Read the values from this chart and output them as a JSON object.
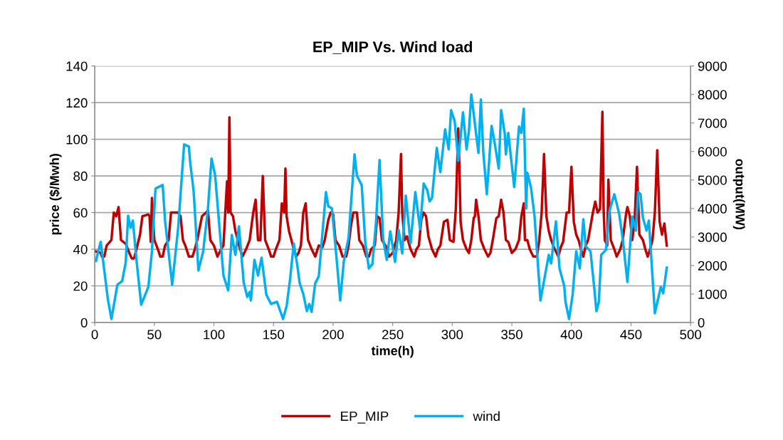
{
  "chart_data": {
    "type": "line",
    "title": "EP_MIP Vs. Wind load",
    "xlabel": "time(h)",
    "ylabel": "price ($/Mwh)",
    "y2label": "output(MW)",
    "xlim": [
      0,
      500
    ],
    "xticks": [
      0,
      50,
      100,
      150,
      200,
      250,
      300,
      350,
      400,
      450,
      500
    ],
    "ylim": [
      0,
      140
    ],
    "yticks": [
      0,
      20,
      40,
      60,
      80,
      100,
      120,
      140
    ],
    "y2lim": [
      0,
      9000
    ],
    "y2ticks": [
      0,
      1000,
      2000,
      3000,
      4000,
      5000,
      6000,
      7000,
      8000,
      9000
    ],
    "grid": "y",
    "legend": "bottom",
    "marker": "none",
    "line_style": "solid",
    "series": [
      {
        "name": "EP_MIP",
        "color": "#c00000",
        "axis": "y",
        "x": [
          0,
          5,
          6,
          8,
          10,
          14,
          16,
          18,
          20,
          22,
          26,
          29,
          31,
          33,
          35,
          38,
          40,
          45,
          46,
          47,
          48,
          50,
          53,
          55,
          57,
          59,
          62,
          64,
          70,
          72,
          74,
          76,
          79,
          82,
          84,
          86,
          90,
          95,
          97,
          100,
          103,
          106,
          108,
          111,
          112,
          113,
          114,
          116,
          118,
          120,
          122,
          124,
          127,
          130,
          133,
          135,
          137,
          139,
          141,
          143,
          146,
          148,
          150,
          152,
          155,
          157,
          159,
          160,
          161,
          163,
          165,
          167,
          169,
          171,
          173,
          175,
          177,
          179,
          182,
          185,
          188,
          191,
          193,
          196,
          198,
          200,
          202,
          205,
          208,
          211,
          213,
          215,
          217,
          220,
          222,
          225,
          228,
          230,
          232,
          235,
          237,
          239,
          241,
          244,
          247,
          250,
          253,
          255,
          257,
          258,
          260,
          262,
          265,
          268,
          270,
          272,
          274,
          276,
          278,
          280,
          283,
          286,
          288,
          290,
          293,
          296,
          298,
          301,
          303,
          305,
          306,
          307,
          309,
          312,
          314,
          316,
          318,
          319,
          320,
          322,
          324,
          327,
          330,
          332,
          334,
          337,
          339,
          341,
          343,
          345,
          347,
          350,
          353,
          356,
          358,
          360,
          361,
          363,
          365,
          368,
          371,
          373,
          375,
          377,
          379,
          381,
          383,
          386,
          389,
          391,
          393,
          396,
          398,
          400,
          402,
          404,
          406,
          408,
          410,
          412,
          414,
          418,
          420,
          422,
          424,
          426,
          427,
          428,
          430,
          431,
          433,
          436,
          438,
          441,
          443,
          446,
          447,
          449,
          451,
          453,
          455,
          457,
          460,
          462,
          464,
          466,
          468,
          470,
          472,
          474,
          476,
          478,
          480
        ],
        "values": [
          39,
          38,
          36,
          36,
          42,
          45,
          60,
          58,
          63,
          45,
          43,
          38,
          35,
          35,
          40,
          48,
          58,
          59,
          58,
          44,
          68,
          45,
          40,
          36,
          36,
          42,
          45,
          60,
          60,
          58,
          45,
          42,
          36,
          36,
          40,
          45,
          58,
          61,
          45,
          42,
          36,
          40,
          42,
          77,
          60,
          112,
          60,
          58,
          50,
          45,
          40,
          36,
          40,
          45,
          60,
          67,
          45,
          45,
          80,
          45,
          40,
          36,
          36,
          40,
          45,
          65,
          60,
          84,
          58,
          50,
          45,
          40,
          36,
          38,
          42,
          60,
          65,
          45,
          40,
          36,
          42,
          41,
          45,
          56,
          60,
          59,
          45,
          42,
          36,
          36,
          42,
          53,
          60,
          60,
          45,
          42,
          36,
          36,
          40,
          42,
          58,
          57,
          45,
          42,
          36,
          38,
          45,
          60,
          92,
          60,
          45,
          47,
          40,
          36,
          40,
          42,
          56,
          60,
          58,
          47,
          40,
          36,
          40,
          42,
          55,
          56,
          45,
          44,
          62,
          106,
          85,
          55,
          45,
          40,
          38,
          45,
          57,
          58,
          67,
          58,
          45,
          40,
          36,
          38,
          45,
          57,
          58,
          67,
          60,
          45,
          44,
          38,
          40,
          45,
          58,
          65,
          45,
          45,
          40,
          36,
          36,
          45,
          60,
          92,
          58,
          50,
          45,
          40,
          36,
          41,
          44,
          60,
          60,
          85,
          55,
          48,
          45,
          40,
          36,
          42,
          45,
          60,
          66,
          60,
          62,
          115,
          62,
          45,
          42,
          78,
          45,
          40,
          36,
          40,
          45,
          60,
          63,
          58,
          45,
          55,
          85,
          48,
          45,
          40,
          36,
          40,
          45,
          60,
          94,
          55,
          48,
          54,
          42
        ]
      },
      {
        "name": "wind",
        "color": "#00b0f0",
        "axis": "y2",
        "x": [
          1,
          5,
          11,
          14,
          19,
          23,
          26,
          28,
          30,
          32,
          35,
          39,
          45,
          48,
          51,
          57,
          59,
          65,
          70,
          75,
          79,
          80,
          83,
          87,
          91,
          95,
          98,
          101,
          108,
          112,
          115,
          118,
          121,
          125,
          128,
          130,
          131,
          134,
          137,
          140,
          144,
          148,
          153,
          158,
          161,
          164,
          167,
          170,
          172,
          175,
          178,
          180,
          182,
          185,
          188,
          194,
          196,
          199,
          202,
          206,
          209,
          213,
          218,
          220,
          224,
          227,
          230,
          233,
          236,
          239,
          242,
          245,
          248,
          252,
          255,
          258,
          261,
          265,
          269,
          273,
          276,
          279,
          281,
          283,
          287,
          290,
          294,
          297,
          299,
          302,
          305,
          309,
          312,
          314,
          316,
          320,
          322,
          324,
          326,
          329,
          333,
          335,
          339,
          341,
          344,
          345,
          347,
          352,
          356,
          358,
          360,
          362,
          363,
          366,
          369,
          374,
          381,
          383,
          387,
          390,
          394,
          395,
          398,
          401,
          404,
          407,
          410,
          412,
          416,
          419,
          421,
          423,
          425,
          429,
          432,
          436,
          440,
          443,
          447,
          451,
          454,
          456,
          458,
          460,
          463,
          465,
          470,
          475,
          477,
          480
        ],
        "values": [
          2160,
          2830,
          825,
          125,
          1325,
          1450,
          2100,
          3750,
          3325,
          3575,
          2200,
          625,
          1250,
          2500,
          4700,
          4825,
          3575,
          1325,
          3325,
          6250,
          6175,
          5650,
          4600,
          1825,
          2500,
          4000,
          5750,
          5175,
          1650,
          1125,
          3075,
          2375,
          3375,
          1400,
          900,
          1075,
          775,
          2200,
          1650,
          2275,
          975,
          650,
          725,
          125,
          575,
          1550,
          2775,
          2000,
          1375,
          1000,
          400,
          650,
          375,
          1375,
          1625,
          4575,
          4075,
          4000,
          2675,
          775,
          2150,
          2975,
          5900,
          5150,
          4825,
          2825,
          1900,
          2050,
          3500,
          5700,
          2925,
          2200,
          3200,
          2125,
          3250,
          2425,
          4450,
          2775,
          4575,
          3275,
          4875,
          4650,
          4250,
          4375,
          6125,
          5275,
          6775,
          6075,
          7450,
          7075,
          5675,
          7375,
          6075,
          6725,
          8000,
          6625,
          5950,
          7825,
          6000,
          4500,
          6900,
          6450,
          5400,
          7450,
          6650,
          5900,
          6650,
          4750,
          6875,
          6650,
          7500,
          4000,
          5250,
          4750,
          3750,
          775,
          2375,
          2075,
          3550,
          1900,
          1275,
          725,
          125,
          975,
          2500,
          1900,
          3625,
          2675,
          2500,
          1275,
          400,
          725,
          2375,
          2550,
          3925,
          4500,
          3825,
          2950,
          1425,
          3725,
          3225,
          4575,
          4500,
          3675,
          3225,
          3575,
          325,
          1250,
          1025,
          1925
        ]
      }
    ]
  }
}
